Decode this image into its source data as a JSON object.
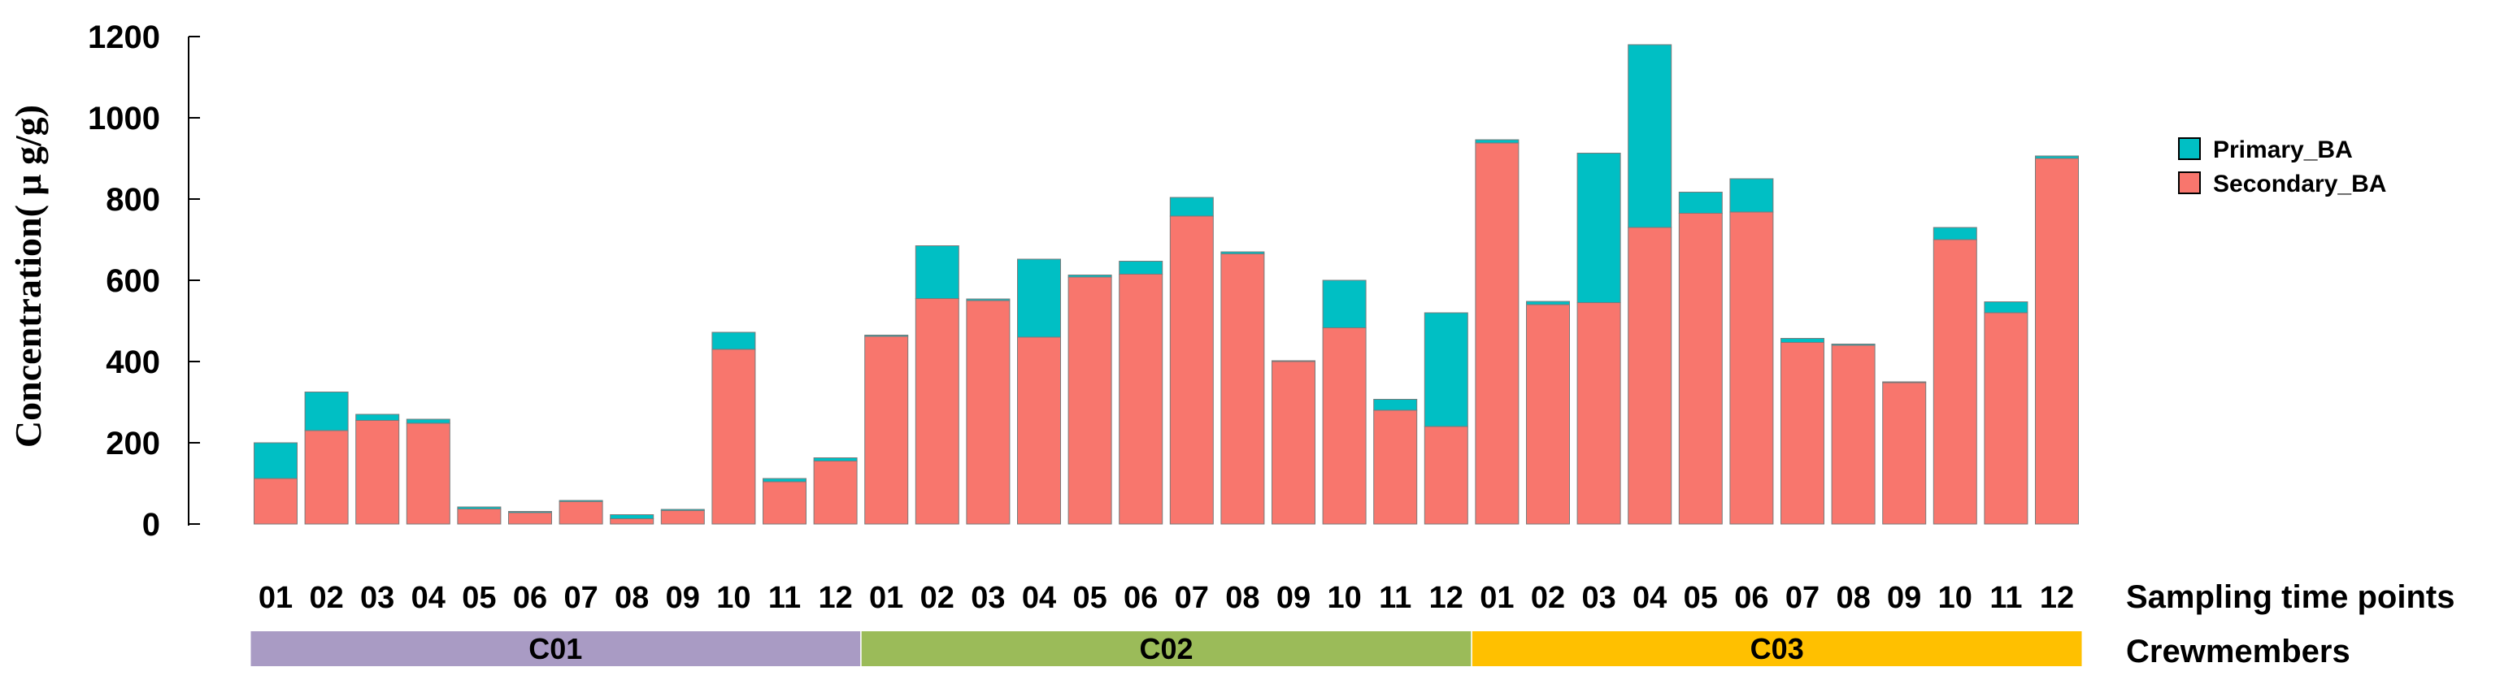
{
  "chart_data": {
    "type": "bar",
    "stacked": true,
    "ylabel": "Concentration( μ g/g)",
    "xlabel": "Sampling time points",
    "group_label": "Crewmembers",
    "ylim": [
      0,
      1200
    ],
    "yticks": [
      0,
      200,
      400,
      600,
      800,
      1000,
      1200
    ],
    "grid": false,
    "legend_position": "right",
    "categories": [
      "01",
      "02",
      "03",
      "04",
      "05",
      "06",
      "07",
      "08",
      "09",
      "10",
      "11",
      "12",
      "01",
      "02",
      "03",
      "04",
      "05",
      "06",
      "07",
      "08",
      "09",
      "10",
      "11",
      "12",
      "01",
      "02",
      "03",
      "04",
      "05",
      "06",
      "07",
      "08",
      "09",
      "10",
      "11",
      "12"
    ],
    "groups": [
      {
        "name": "C01",
        "color": "#a99bc4",
        "start": 0,
        "count": 12
      },
      {
        "name": "C02",
        "color": "#9bbb59",
        "start": 12,
        "count": 12
      },
      {
        "name": "C03",
        "color": "#ffc000",
        "start": 24,
        "count": 12
      }
    ],
    "series": [
      {
        "name": "Secondary_BA",
        "color": "#f8766d",
        "values": [
          112,
          230,
          255,
          248,
          37,
          28,
          55,
          13,
          33,
          430,
          104,
          155,
          462,
          555,
          550,
          460,
          608,
          615,
          758,
          665,
          400,
          483,
          280,
          240,
          938,
          540,
          545,
          730,
          765,
          768,
          447,
          440,
          348,
          700,
          520,
          900
        ]
      },
      {
        "name": "Primary_BA",
        "color": "#00bfc4",
        "values": [
          88,
          95,
          15,
          10,
          5,
          3,
          3,
          10,
          3,
          42,
          8,
          8,
          3,
          130,
          4,
          192,
          5,
          32,
          46,
          5,
          2,
          117,
          27,
          280,
          8,
          8,
          368,
          450,
          52,
          82,
          10,
          3,
          2,
          30,
          27,
          6
        ]
      }
    ]
  }
}
